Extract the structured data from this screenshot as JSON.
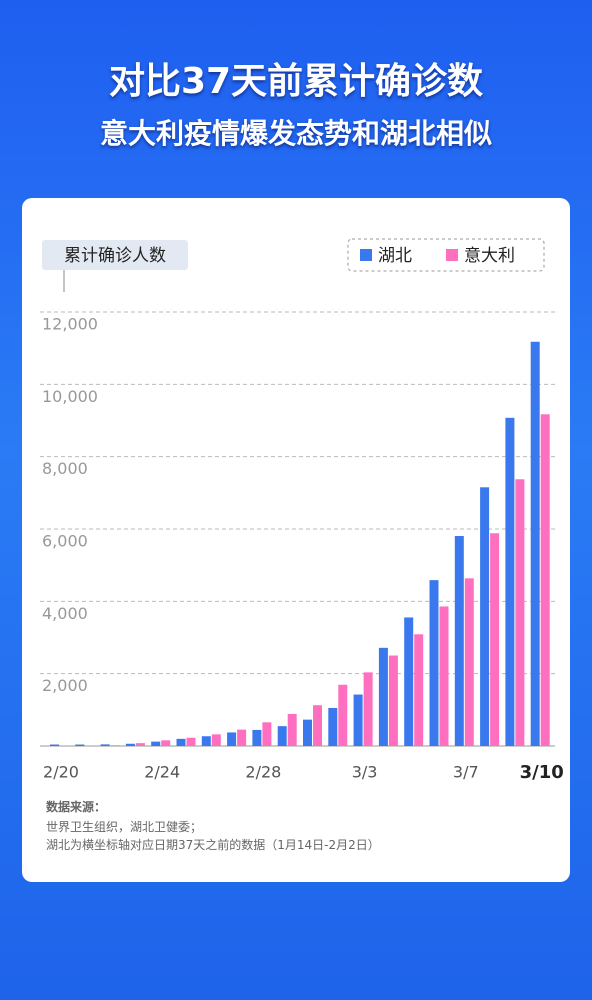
{
  "chart_data": {
    "type": "bar",
    "title": "对比37天前累计确诊数",
    "subtitle": "意大利疫情爆发态势和湖北相似",
    "y_label": "累计确诊人数",
    "categories": [
      "2/20",
      null,
      null,
      null,
      "2/24",
      null,
      null,
      null,
      "2/28",
      null,
      null,
      null,
      "3/3",
      null,
      null,
      null,
      "3/7",
      null,
      null,
      "3/10"
    ],
    "series": [
      {
        "name": "湖北",
        "color": "#3a78ee",
        "values": [
          41,
          41,
          45,
          62,
          121,
          198,
          270,
          375,
          444,
          549,
          729,
          1052,
          1423,
          2714,
          3554,
          4586,
          5806,
          7153,
          9074,
          11177
        ]
      },
      {
        "name": "意大利",
        "color": "#ff6fbf",
        "values": [
          3,
          3,
          20,
          79,
          157,
          229,
          322,
          453,
          655,
          888,
          1128,
          1694,
          2036,
          2502,
          3089,
          3858,
          4636,
          5883,
          7375,
          9172
        ]
      }
    ],
    "ylim": [
      0,
      12000
    ],
    "yticks": [
      {
        "value": 2000,
        "label": "2,000"
      },
      {
        "value": 4000,
        "label": "4,000"
      },
      {
        "value": 6000,
        "label": "6,000"
      },
      {
        "value": 8000,
        "label": "8,000"
      },
      {
        "value": 10000,
        "label": "10,000"
      },
      {
        "value": 12000,
        "label": "12,000"
      }
    ],
    "grid": true,
    "legend": "top-right",
    "source_title": "数据来源：",
    "source_lines": [
      "世界卫生组织，湖北卫健委；",
      "湖北为横坐标轴对应日期37天之前的数据（1月14日-2月2日）"
    ]
  }
}
